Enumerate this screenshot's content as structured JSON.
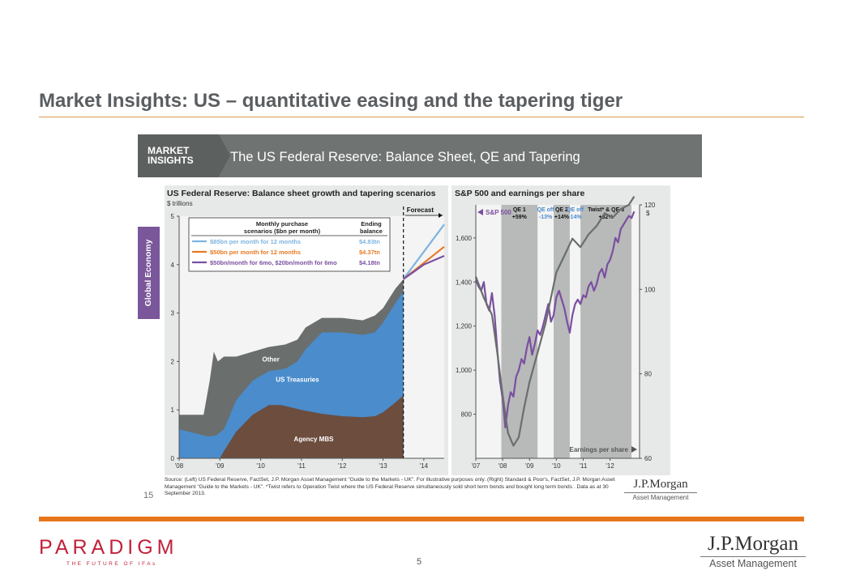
{
  "slide": {
    "title": "Market Insights: US – quantitative easing and the tapering tiger",
    "page_number": "5"
  },
  "banner": {
    "tag": "MARKET\nINSIGHTS",
    "title": "The US Federal Reserve: Balance Sheet, QE and Tapering"
  },
  "side_tab": "Global Economy",
  "source_note": "Source: (Left) US Federal Reserve, FactSet, J.P. Morgan Asset Management \"Guide to the Markets - UK\". For illustrative purposes only. (Right) Standard & Poor's, FactSet, J.P. Morgan Asset Management \"Guide to the Markets - UK\". *Twist refers to Operation Twist where the US Federal Reserve simultaneously sold short term bonds and bought long term bonds . Data as at 30 September 2013.",
  "inner_slide_number": "15",
  "jpm_logo": {
    "name": "J.P.Morgan",
    "sub": "Asset Management"
  },
  "paradigm_logo": {
    "name": "PARADIGM",
    "tagline": "THE FUTURE OF IFAs"
  },
  "colors": {
    "other": "#6a6e6c",
    "treasuries": "#4a8ccc",
    "mbs": "#6c4d3e",
    "light_blue": "#7db4e0",
    "orange": "#e87a24",
    "purple": "#7a4fa0",
    "sp500": "#7a4fa0",
    "eps": "#6a6e6c",
    "shade": "#b8b9b9"
  },
  "chart_data": [
    {
      "type": "area",
      "title": "US Federal Reserve: Balance sheet growth and tapering scenarios",
      "subtitle": "$ trillions",
      "ylim": [
        0,
        5
      ],
      "y_ticks": [
        "0",
        "1",
        "2",
        "3",
        "4",
        "5"
      ],
      "x_ticks": [
        "'08",
        "'09",
        "'10",
        "'11",
        "'12",
        "'13",
        "'14"
      ],
      "x_tick_values": [
        2008,
        2009,
        2010,
        2011,
        2012,
        2013,
        2014
      ],
      "xlim": [
        2008,
        2014.5
      ],
      "forecast_start": 2013.5,
      "forecast_label": "Forecast",
      "series": [
        {
          "name": "Agency MBS",
          "x": [
            2008,
            2009,
            2009.1,
            2009.4,
            2009.8,
            2010.2,
            2010.5,
            2011.0,
            2011.5,
            2012.0,
            2012.5,
            2012.8,
            2013.0,
            2013.3,
            2013.5
          ],
          "values": [
            0,
            0,
            0.15,
            0.55,
            0.9,
            1.1,
            1.1,
            1.0,
            0.92,
            0.87,
            0.85,
            0.87,
            0.95,
            1.15,
            1.3
          ]
        },
        {
          "name": "US Treasuries",
          "x": [
            2008,
            2008.7,
            2008.9,
            2009.1,
            2009.4,
            2009.8,
            2010.2,
            2010.6,
            2010.9,
            2011.1,
            2011.5,
            2012.0,
            2012.5,
            2012.8,
            2013.0,
            2013.3,
            2013.5
          ],
          "values": [
            0.6,
            0.45,
            0.47,
            0.6,
            1.2,
            1.6,
            1.8,
            1.85,
            2.0,
            2.25,
            2.6,
            2.6,
            2.55,
            2.6,
            2.8,
            3.2,
            3.45
          ]
        },
        {
          "name": "Other",
          "x": [
            2008,
            2008.6,
            2008.75,
            2008.85,
            2008.95,
            2009.1,
            2009.4,
            2009.8,
            2010.2,
            2010.6,
            2010.9,
            2011.1,
            2011.5,
            2012.0,
            2012.5,
            2012.8,
            2013.0,
            2013.3,
            2013.5
          ],
          "values": [
            0.9,
            0.9,
            1.6,
            2.2,
            2.0,
            2.1,
            2.1,
            2.2,
            2.3,
            2.35,
            2.45,
            2.7,
            2.9,
            2.9,
            2.85,
            2.95,
            3.1,
            3.5,
            3.7
          ]
        }
      ],
      "legend": {
        "header_left": "Monthly purchase scenarios ($bn per month)",
        "header_right": "Ending balance",
        "entries": [
          {
            "label": "$85bn per month for 12 months",
            "value": "$4.83tn",
            "color": "#7db4e0"
          },
          {
            "label": "$50bn per month for 12 months",
            "value": "$4.37tn",
            "color": "#e87a24"
          },
          {
            "label": "$50bn/month for 6mo, $20bn/month for 6mo",
            "value": "$4.18tn",
            "color": "#7a4fa0"
          }
        ]
      },
      "scenarios": [
        {
          "x": [
            2013.5,
            2014.5
          ],
          "values": [
            3.7,
            4.83
          ],
          "color": "#7db4e0"
        },
        {
          "x": [
            2013.5,
            2014.5
          ],
          "values": [
            3.7,
            4.37
          ],
          "color": "#e87a24"
        },
        {
          "x": [
            2013.5,
            2014.0,
            2014.5
          ],
          "values": [
            3.7,
            4.0,
            4.18
          ],
          "color": "#7a4fa0"
        }
      ],
      "area_labels": [
        {
          "text": "Other",
          "x": 2010.25,
          "y": 2.0,
          "color": "#ffffff"
        },
        {
          "text": "US Treasuries",
          "x": 2010.9,
          "y": 1.58,
          "color": "#ffffff"
        },
        {
          "text": "Agency MBS",
          "x": 2011.3,
          "y": 0.35,
          "color": "#ffffff"
        }
      ]
    },
    {
      "type": "line",
      "title": "S&P 500 and earnings per share",
      "x_ticks": [
        "'07",
        "'08",
        "'09",
        "'10",
        "'11",
        "'12"
      ],
      "x_tick_values": [
        2007,
        2008,
        2009,
        2010,
        2011,
        2012
      ],
      "xlim": [
        2007,
        2013.1
      ],
      "ylim_left": [
        600,
        1750
      ],
      "y_ticks_left": [
        "800",
        "1,000",
        "1,200",
        "1,400",
        "1,600"
      ],
      "y_tick_values_left": [
        800,
        1000,
        1200,
        1400,
        1600
      ],
      "ylim_right": [
        60,
        120
      ],
      "y_ticks_right": [
        "60",
        "80",
        "100",
        "120"
      ],
      "y_tick_values_right": [
        60,
        80,
        100,
        120
      ],
      "right_axis_label": "$",
      "shaded_periods": [
        {
          "label": "QE 1",
          "change": "+59%",
          "from": 2007.95,
          "to": 2009.3,
          "shaded": true
        },
        {
          "label": "QE off",
          "change": "-13%",
          "from": 2009.3,
          "to": 2009.9,
          "shaded": false
        },
        {
          "label": "QE 2",
          "change": "+14%",
          "from": 2009.9,
          "to": 2010.5,
          "shaded": true
        },
        {
          "label": "QE off",
          "change": "-14%",
          "from": 2010.5,
          "to": 2010.9,
          "shaded": false
        },
        {
          "label": "Twist* & QE 3",
          "change": "+32%",
          "from": 2010.9,
          "to": 2012.8,
          "shaded": true
        }
      ],
      "series": [
        {
          "name": "S&P 500",
          "axis": "left",
          "x": [
            2007.0,
            2007.1,
            2007.2,
            2007.3,
            2007.4,
            2007.5,
            2007.6,
            2007.7,
            2007.8,
            2007.9,
            2008.0,
            2008.1,
            2008.2,
            2008.3,
            2008.4,
            2008.5,
            2008.6,
            2008.7,
            2008.8,
            2008.9,
            2009.0,
            2009.1,
            2009.2,
            2009.3,
            2009.4,
            2009.5,
            2009.6,
            2009.7,
            2009.8,
            2009.9,
            2010.0,
            2010.1,
            2010.2,
            2010.3,
            2010.4,
            2010.5,
            2010.6,
            2010.7,
            2010.8,
            2010.9,
            2011.0,
            2011.1,
            2011.2,
            2011.3,
            2011.4,
            2011.5,
            2011.6,
            2011.7,
            2011.8,
            2011.9,
            2012.0,
            2012.1,
            2012.2,
            2012.3,
            2012.4,
            2012.5,
            2012.6,
            2012.7,
            2012.8,
            2012.9
          ],
          "values": [
            1410,
            1380,
            1360,
            1400,
            1300,
            1270,
            1350,
            1250,
            1090,
            950,
            870,
            740,
            840,
            900,
            880,
            970,
            1000,
            1050,
            1030,
            1100,
            1150,
            1070,
            1120,
            1180,
            1160,
            1200,
            1250,
            1300,
            1220,
            1250,
            1330,
            1360,
            1320,
            1280,
            1220,
            1170,
            1250,
            1300,
            1320,
            1300,
            1340,
            1330,
            1380,
            1400,
            1360,
            1390,
            1440,
            1460,
            1420,
            1480,
            1500,
            1540,
            1600,
            1580,
            1640,
            1660,
            1680,
            1700,
            1690,
            1720
          ]
        },
        {
          "name": "Earnings per share",
          "axis": "right",
          "x": [
            2007.0,
            2007.3,
            2007.6,
            2007.8,
            2008.0,
            2008.2,
            2008.4,
            2008.6,
            2008.8,
            2009.0,
            2009.3,
            2009.6,
            2009.8,
            2010.0,
            2010.3,
            2010.6,
            2010.9,
            2011.2,
            2011.5,
            2011.8,
            2012.1,
            2012.4,
            2012.7,
            2012.9
          ],
          "values": [
            103,
            98,
            94,
            85,
            75,
            66,
            63,
            65,
            72,
            78,
            85,
            92,
            98,
            104,
            108,
            112,
            110,
            113,
            115,
            118,
            117,
            119,
            120,
            122
          ]
        }
      ],
      "series_labels": [
        {
          "text": "S&P 500",
          "color": "#7a4fa0"
        },
        {
          "text": "Earnings per share",
          "color": "#555555"
        }
      ]
    }
  ]
}
